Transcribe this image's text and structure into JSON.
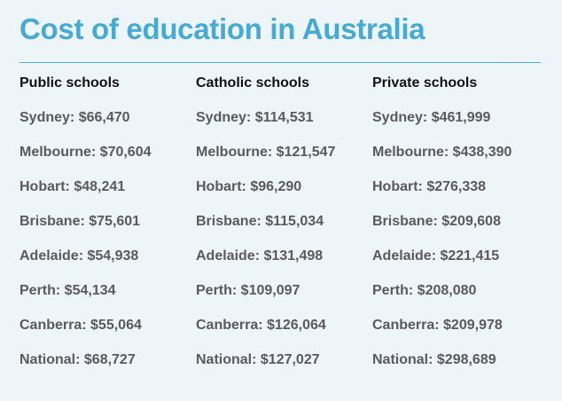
{
  "title": "Cost of education in Australia",
  "columns": [
    {
      "header": "Public schools",
      "rows": [
        "Sydney: $66,470",
        "Melbourne: $70,604",
        "Hobart: $48,241",
        "Brisbane: $75,601",
        "Adelaide: $54,938",
        "Perth: $54,134",
        "Canberra: $55,064",
        "National: $68,727"
      ]
    },
    {
      "header": "Catholic schools",
      "rows": [
        "Sydney: $114,531",
        "Melbourne: $121,547",
        "Hobart: $96,290",
        "Brisbane: $115,034",
        "Adelaide: $131,498",
        "Perth: $109,097",
        "Canberra: $126,064",
        "National: $127,027"
      ]
    },
    {
      "header": "Private schools",
      "rows": [
        "Sydney: $461,999",
        "Melbourne: $438,390",
        "Hobart: $276,338",
        "Brisbane: $209,608",
        "Adelaide: $221,415",
        "Perth: $208,080",
        "Canberra: $209,978",
        "National: $298,689"
      ]
    }
  ]
}
